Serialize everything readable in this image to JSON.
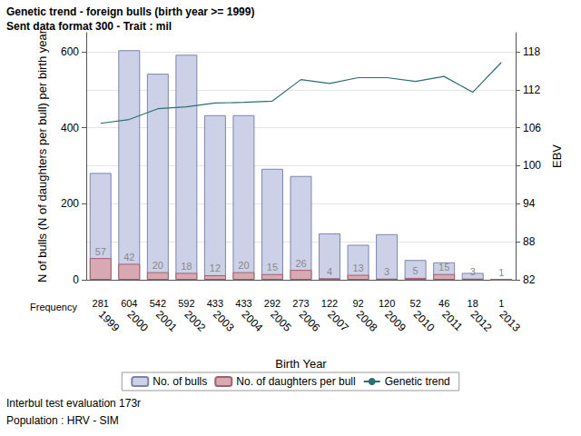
{
  "chart_data": {
    "type": "bar",
    "title": "Genetic trend - foreign bulls (birth year >= 1999)",
    "subtitle": "Sent data format 300 - Trait : mil",
    "annotations": [
      "Interbul test evaluation 173r",
      "Population : HRV - SIM"
    ],
    "frequency_label": "Frequency",
    "x_label": "Birth Year",
    "y_label": "N of bulls (N of daughters per bull) per birth year",
    "y2_label": "EBV",
    "categories": [
      "1999",
      "2000",
      "2001",
      "2002",
      "2003",
      "2004",
      "2005",
      "2006",
      "2007",
      "2008",
      "2009",
      "2010",
      "2011",
      "2012",
      "2013"
    ],
    "series": [
      {
        "name": "No. of bulls",
        "type": "bar",
        "color": "#cdd1e8",
        "values": [
          281,
          604,
          542,
          592,
          433,
          433,
          292,
          273,
          122,
          92,
          120,
          52,
          46,
          18,
          1
        ]
      },
      {
        "name": "No. of daughters per bull",
        "type": "bar",
        "color": "#d8a9b3",
        "data_labels": true,
        "values": [
          57,
          42,
          20,
          18,
          12,
          20,
          15,
          26,
          4,
          13,
          3,
          5,
          15,
          3,
          1
        ]
      },
      {
        "name": "Genetic trend",
        "type": "line",
        "axis": "y2",
        "color": "#2c6f6f",
        "marker": "none",
        "values": [
          106.7,
          107.3,
          109.0,
          109.3,
          109.9,
          110.0,
          110.2,
          113.6,
          113.0,
          113.9,
          113.9,
          113.3,
          114.1,
          111.6,
          116.3
        ]
      }
    ],
    "ylim": [
      0,
      650
    ],
    "yticks": [
      0,
      200,
      400,
      600
    ],
    "y2lim": [
      82,
      121
    ],
    "y2ticks": [
      82,
      88,
      94,
      100,
      106,
      112,
      118
    ],
    "grid": true,
    "legend": "bottom"
  }
}
